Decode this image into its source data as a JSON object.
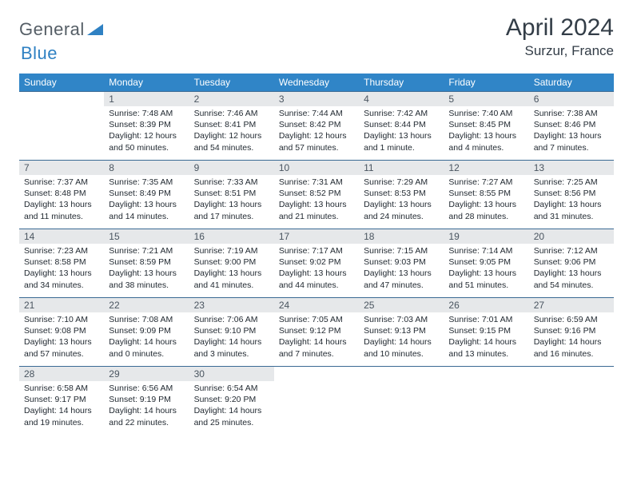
{
  "logo": {
    "word1": "General",
    "word2": "Blue",
    "icon_color": "#2f81c3"
  },
  "title": "April 2024",
  "location": "Surzur, France",
  "header_bg": "#3085c7",
  "header_fg": "#ffffff",
  "daynum_bg": "#e6e8ea",
  "cell_border": "#3a6a94",
  "day_names": [
    "Sunday",
    "Monday",
    "Tuesday",
    "Wednesday",
    "Thursday",
    "Friday",
    "Saturday"
  ],
  "first_day_index": 1,
  "days": [
    {
      "n": 1,
      "sunrise": "7:48 AM",
      "sunset": "8:39 PM",
      "daylight": "12 hours and 50 minutes."
    },
    {
      "n": 2,
      "sunrise": "7:46 AM",
      "sunset": "8:41 PM",
      "daylight": "12 hours and 54 minutes."
    },
    {
      "n": 3,
      "sunrise": "7:44 AM",
      "sunset": "8:42 PM",
      "daylight": "12 hours and 57 minutes."
    },
    {
      "n": 4,
      "sunrise": "7:42 AM",
      "sunset": "8:44 PM",
      "daylight": "13 hours and 1 minute."
    },
    {
      "n": 5,
      "sunrise": "7:40 AM",
      "sunset": "8:45 PM",
      "daylight": "13 hours and 4 minutes."
    },
    {
      "n": 6,
      "sunrise": "7:38 AM",
      "sunset": "8:46 PM",
      "daylight": "13 hours and 7 minutes."
    },
    {
      "n": 7,
      "sunrise": "7:37 AM",
      "sunset": "8:48 PM",
      "daylight": "13 hours and 11 minutes."
    },
    {
      "n": 8,
      "sunrise": "7:35 AM",
      "sunset": "8:49 PM",
      "daylight": "13 hours and 14 minutes."
    },
    {
      "n": 9,
      "sunrise": "7:33 AM",
      "sunset": "8:51 PM",
      "daylight": "13 hours and 17 minutes."
    },
    {
      "n": 10,
      "sunrise": "7:31 AM",
      "sunset": "8:52 PM",
      "daylight": "13 hours and 21 minutes."
    },
    {
      "n": 11,
      "sunrise": "7:29 AM",
      "sunset": "8:53 PM",
      "daylight": "13 hours and 24 minutes."
    },
    {
      "n": 12,
      "sunrise": "7:27 AM",
      "sunset": "8:55 PM",
      "daylight": "13 hours and 28 minutes."
    },
    {
      "n": 13,
      "sunrise": "7:25 AM",
      "sunset": "8:56 PM",
      "daylight": "13 hours and 31 minutes."
    },
    {
      "n": 14,
      "sunrise": "7:23 AM",
      "sunset": "8:58 PM",
      "daylight": "13 hours and 34 minutes."
    },
    {
      "n": 15,
      "sunrise": "7:21 AM",
      "sunset": "8:59 PM",
      "daylight": "13 hours and 38 minutes."
    },
    {
      "n": 16,
      "sunrise": "7:19 AM",
      "sunset": "9:00 PM",
      "daylight": "13 hours and 41 minutes."
    },
    {
      "n": 17,
      "sunrise": "7:17 AM",
      "sunset": "9:02 PM",
      "daylight": "13 hours and 44 minutes."
    },
    {
      "n": 18,
      "sunrise": "7:15 AM",
      "sunset": "9:03 PM",
      "daylight": "13 hours and 47 minutes."
    },
    {
      "n": 19,
      "sunrise": "7:14 AM",
      "sunset": "9:05 PM",
      "daylight": "13 hours and 51 minutes."
    },
    {
      "n": 20,
      "sunrise": "7:12 AM",
      "sunset": "9:06 PM",
      "daylight": "13 hours and 54 minutes."
    },
    {
      "n": 21,
      "sunrise": "7:10 AM",
      "sunset": "9:08 PM",
      "daylight": "13 hours and 57 minutes."
    },
    {
      "n": 22,
      "sunrise": "7:08 AM",
      "sunset": "9:09 PM",
      "daylight": "14 hours and 0 minutes."
    },
    {
      "n": 23,
      "sunrise": "7:06 AM",
      "sunset": "9:10 PM",
      "daylight": "14 hours and 3 minutes."
    },
    {
      "n": 24,
      "sunrise": "7:05 AM",
      "sunset": "9:12 PM",
      "daylight": "14 hours and 7 minutes."
    },
    {
      "n": 25,
      "sunrise": "7:03 AM",
      "sunset": "9:13 PM",
      "daylight": "14 hours and 10 minutes."
    },
    {
      "n": 26,
      "sunrise": "7:01 AM",
      "sunset": "9:15 PM",
      "daylight": "14 hours and 13 minutes."
    },
    {
      "n": 27,
      "sunrise": "6:59 AM",
      "sunset": "9:16 PM",
      "daylight": "14 hours and 16 minutes."
    },
    {
      "n": 28,
      "sunrise": "6:58 AM",
      "sunset": "9:17 PM",
      "daylight": "14 hours and 19 minutes."
    },
    {
      "n": 29,
      "sunrise": "6:56 AM",
      "sunset": "9:19 PM",
      "daylight": "14 hours and 22 minutes."
    },
    {
      "n": 30,
      "sunrise": "6:54 AM",
      "sunset": "9:20 PM",
      "daylight": "14 hours and 25 minutes."
    }
  ],
  "labels": {
    "sunrise": "Sunrise:",
    "sunset": "Sunset:",
    "daylight": "Daylight:"
  }
}
